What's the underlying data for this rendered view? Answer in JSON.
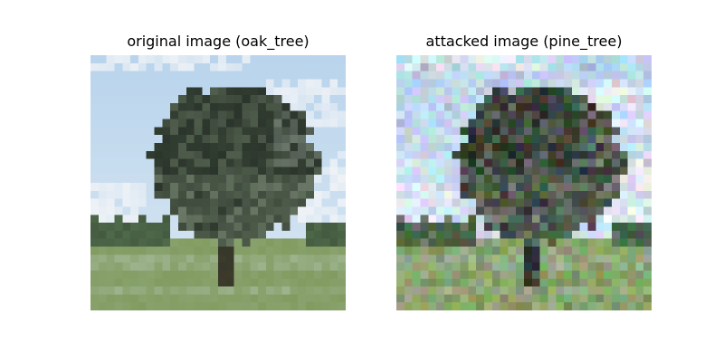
{
  "panels": {
    "left": {
      "title": "original image (oak_tree)"
    },
    "right": {
      "title": "attacked image (pine_tree)"
    }
  },
  "colors": {
    "sky": "#b9d4ec",
    "sky_light": "#dbe8f3",
    "cloud": "#f2f4f7",
    "canopy_dark": "#2b352b",
    "canopy_mid": "#3e4a3c",
    "canopy_light": "#5b6a58",
    "distant_trees": "#4f6a4a",
    "grass": "#7f9a5e",
    "grass_pale": "#a9bfa4",
    "trunk": "#3d3a2a"
  }
}
